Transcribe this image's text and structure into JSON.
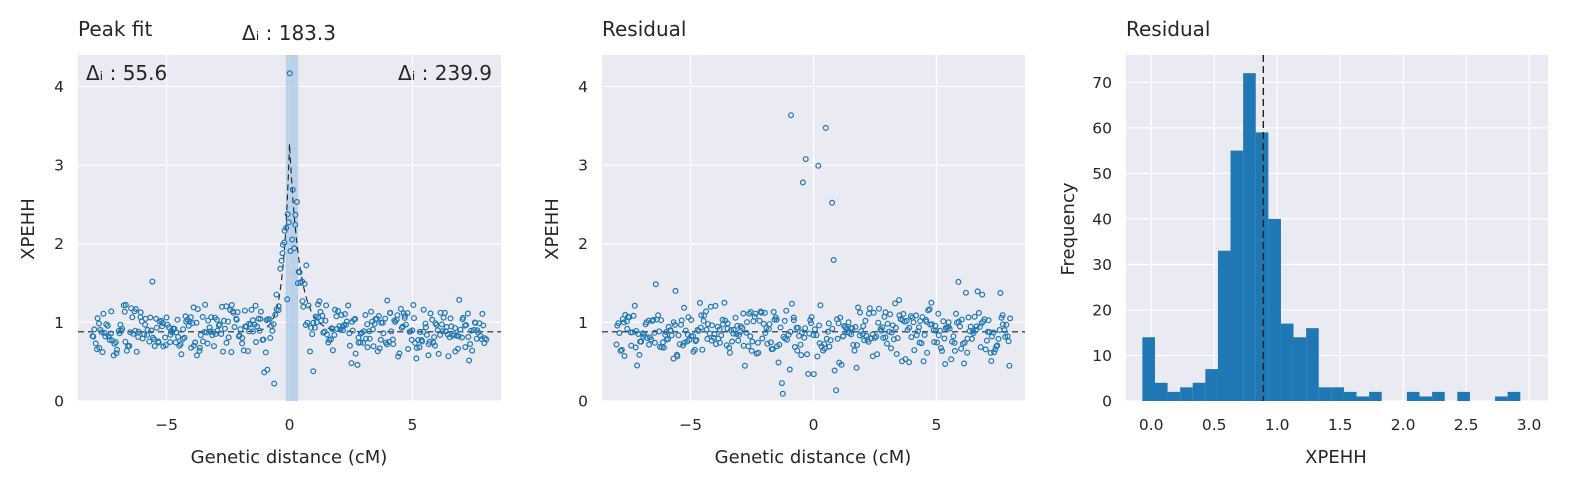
{
  "colors": {
    "panel_bg": "#eaeaf2",
    "grid": "#ffffff",
    "point": "#1f77b4",
    "bar": "#1f77b4",
    "band": "#a9c8e6",
    "guide_line": "#222222"
  },
  "chart_data": [
    {
      "type": "scatter",
      "title": "Peak fit",
      "xlabel": "Genetic distance (cM)",
      "ylabel": "XPEHH",
      "xlim": [
        -8.6,
        8.6
      ],
      "ylim": [
        0,
        4.4
      ],
      "xticks": [
        -5,
        0,
        5
      ],
      "xtick_labels": [
        "−5",
        "0",
        "5"
      ],
      "yticks": [
        0,
        1,
        2,
        3,
        4
      ],
      "ytick_labels": [
        "0",
        "1",
        "2",
        "3",
        "4"
      ],
      "grid": true,
      "marker": "hollow circle",
      "annotations": [
        {
          "text": "Δᵢ : 183.3",
          "placement": "above panel, near x = 0"
        },
        {
          "text": "Δᵢ : 55.6",
          "placement": "top-left inside panel"
        },
        {
          "text": "Δᵢ : 239.9",
          "placement": "top-right inside panel"
        }
      ],
      "peak_band_x": [
        -0.15,
        0.35
      ],
      "baseline_y": 0.88,
      "peak_fit": {
        "center_x": 0.0,
        "height": 3.27,
        "baseline": 0.88,
        "left_width": 0.25,
        "right_width": 0.4
      },
      "seed": 7,
      "n_points": 400
    },
    {
      "type": "scatter",
      "title": "Residual",
      "xlabel": "Genetic distance (cM)",
      "ylabel": "XPEHH",
      "xlim": [
        -8.6,
        8.6
      ],
      "ylim": [
        0,
        4.4
      ],
      "xticks": [
        -5,
        0,
        5
      ],
      "xtick_labels": [
        "−5",
        "0",
        "5"
      ],
      "yticks": [
        0,
        1,
        2,
        3,
        4
      ],
      "ytick_labels": [
        "0",
        "1",
        "2",
        "3",
        "4"
      ],
      "grid": true,
      "marker": "hollow circle",
      "baseline_y": 0.88,
      "seed": 11,
      "n_points": 400
    },
    {
      "type": "bar",
      "title": "Residual",
      "xlabel": "XPEHH",
      "ylabel": "Frequency",
      "xlim": [
        -0.2,
        3.15
      ],
      "ylim": [
        0,
        76
      ],
      "xticks": [
        0.0,
        0.5,
        1.0,
        1.5,
        2.0,
        2.5,
        3.0
      ],
      "xtick_labels": [
        "0.0",
        "0.5",
        "1.0",
        "1.5",
        "2.0",
        "2.5",
        "3.0"
      ],
      "yticks": [
        0,
        10,
        20,
        30,
        40,
        50,
        60,
        70
      ],
      "ytick_labels": [
        "0",
        "10",
        "20",
        "30",
        "40",
        "50",
        "60",
        "70"
      ],
      "grid": true,
      "bin_start": -0.07,
      "bin_width": 0.1,
      "counts": [
        14,
        4,
        2,
        3,
        4,
        7,
        33,
        55,
        72,
        59,
        40,
        17,
        14,
        16,
        3,
        3,
        2,
        1,
        2,
        0,
        0,
        2,
        1,
        2,
        0,
        2,
        0,
        0,
        1,
        2
      ],
      "vline_x": 0.89
    }
  ]
}
